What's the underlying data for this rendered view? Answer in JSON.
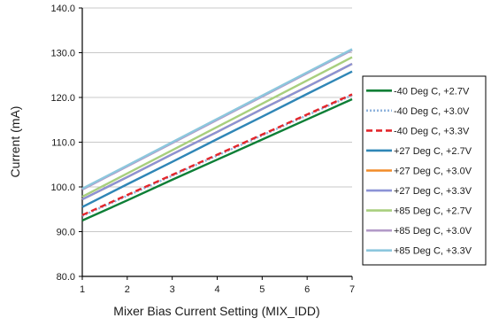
{
  "chart_data": {
    "type": "line",
    "title": "",
    "xlabel": "Mixer Bias Current Setting (MIX_IDD)",
    "ylabel": "Current (mA)",
    "xlim": [
      1,
      7
    ],
    "ylim": [
      80,
      140
    ],
    "x": [
      1,
      2,
      3,
      4,
      5,
      6,
      7
    ],
    "x_ticks": [
      "1",
      "2",
      "3",
      "4",
      "5",
      "6",
      "7"
    ],
    "y_ticks": [
      "80.0",
      "90.0",
      "100.0",
      "110.0",
      "120.0",
      "130.0",
      "140.0"
    ],
    "grid": "horizontal",
    "legend_position": "right",
    "series": [
      {
        "name": "-40 Deg C, +2.7V",
        "color": "#0d7f36",
        "dash": "solid",
        "values": [
          92.5,
          97.0,
          101.6,
          106.1,
          110.6,
          115.1,
          119.6
        ]
      },
      {
        "name": "-40 Deg C, +3.0V",
        "color": "#8fb3dc",
        "dash": "dotted",
        "values": [
          93.5,
          98.0,
          102.5,
          107.0,
          111.5,
          116.0,
          120.5
        ]
      },
      {
        "name": "-40 Deg C, +3.3V",
        "color": "#e3262b",
        "dash": "dashed",
        "values": [
          93.7,
          98.2,
          102.7,
          107.2,
          111.7,
          116.2,
          120.7
        ]
      },
      {
        "name": "+27 Deg C, +2.7V",
        "color": "#2f86b6",
        "dash": "solid",
        "values": [
          95.5,
          100.6,
          105.6,
          110.7,
          115.7,
          120.8,
          125.8
        ]
      },
      {
        "name": "+27 Deg C, +3.0V",
        "color": "#f28c28",
        "dash": "solid",
        "values": [
          97.2,
          102.2,
          107.3,
          112.3,
          117.4,
          122.4,
          127.5
        ]
      },
      {
        "name": "+27 Deg C, +3.3V",
        "color": "#8b93d6",
        "dash": "solid",
        "values": [
          97.2,
          102.2,
          107.3,
          112.3,
          117.4,
          122.4,
          127.5
        ]
      },
      {
        "name": "+85 Deg C, +2.7V",
        "color": "#a8cf7e",
        "dash": "solid",
        "values": [
          97.8,
          103.0,
          108.2,
          113.4,
          118.6,
          123.8,
          129.0
        ]
      },
      {
        "name": "+85 Deg C, +3.0V",
        "color": "#b39ac8",
        "dash": "solid",
        "values": [
          99.4,
          104.6,
          109.8,
          115.0,
          120.2,
          125.4,
          130.6
        ]
      },
      {
        "name": "+85 Deg C, +3.3V",
        "color": "#8cc7dd",
        "dash": "solid",
        "values": [
          99.6,
          104.8,
          110.0,
          115.2,
          120.4,
          125.6,
          130.8
        ]
      }
    ]
  }
}
